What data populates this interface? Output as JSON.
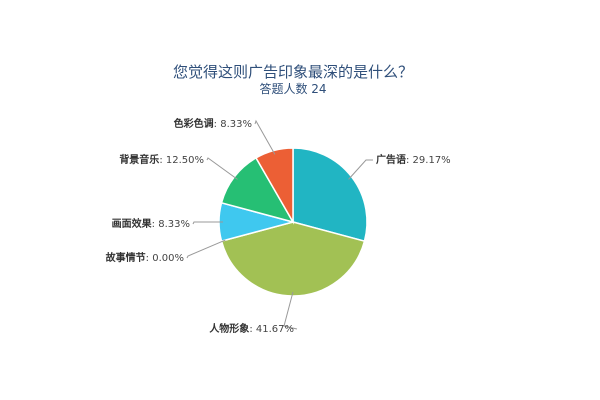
{
  "chart_data": {
    "type": "pie",
    "title": "您觉得这则广告印象最深的是什么？",
    "subtitle": "答题人数 24",
    "slices": [
      {
        "label": "广告语",
        "value": 29.17,
        "value_label": "29.17%",
        "color": "#21b5c3"
      },
      {
        "label": "人物形象",
        "value": 41.67,
        "value_label": "41.67%",
        "color": "#a2c154"
      },
      {
        "label": "故事情节",
        "value": 0.0,
        "value_label": "0.00%",
        "color": "#8c8c8c"
      },
      {
        "label": "画面效果",
        "value": 8.33,
        "value_label": "8.33%",
        "color": "#3fc8ef"
      },
      {
        "label": "背景音乐",
        "value": 12.5,
        "value_label": "12.50%",
        "color": "#26bf74"
      },
      {
        "label": "色彩色调",
        "value": 8.33,
        "value_label": "8.33%",
        "color": "#ec5f35"
      }
    ],
    "legend": "none"
  }
}
